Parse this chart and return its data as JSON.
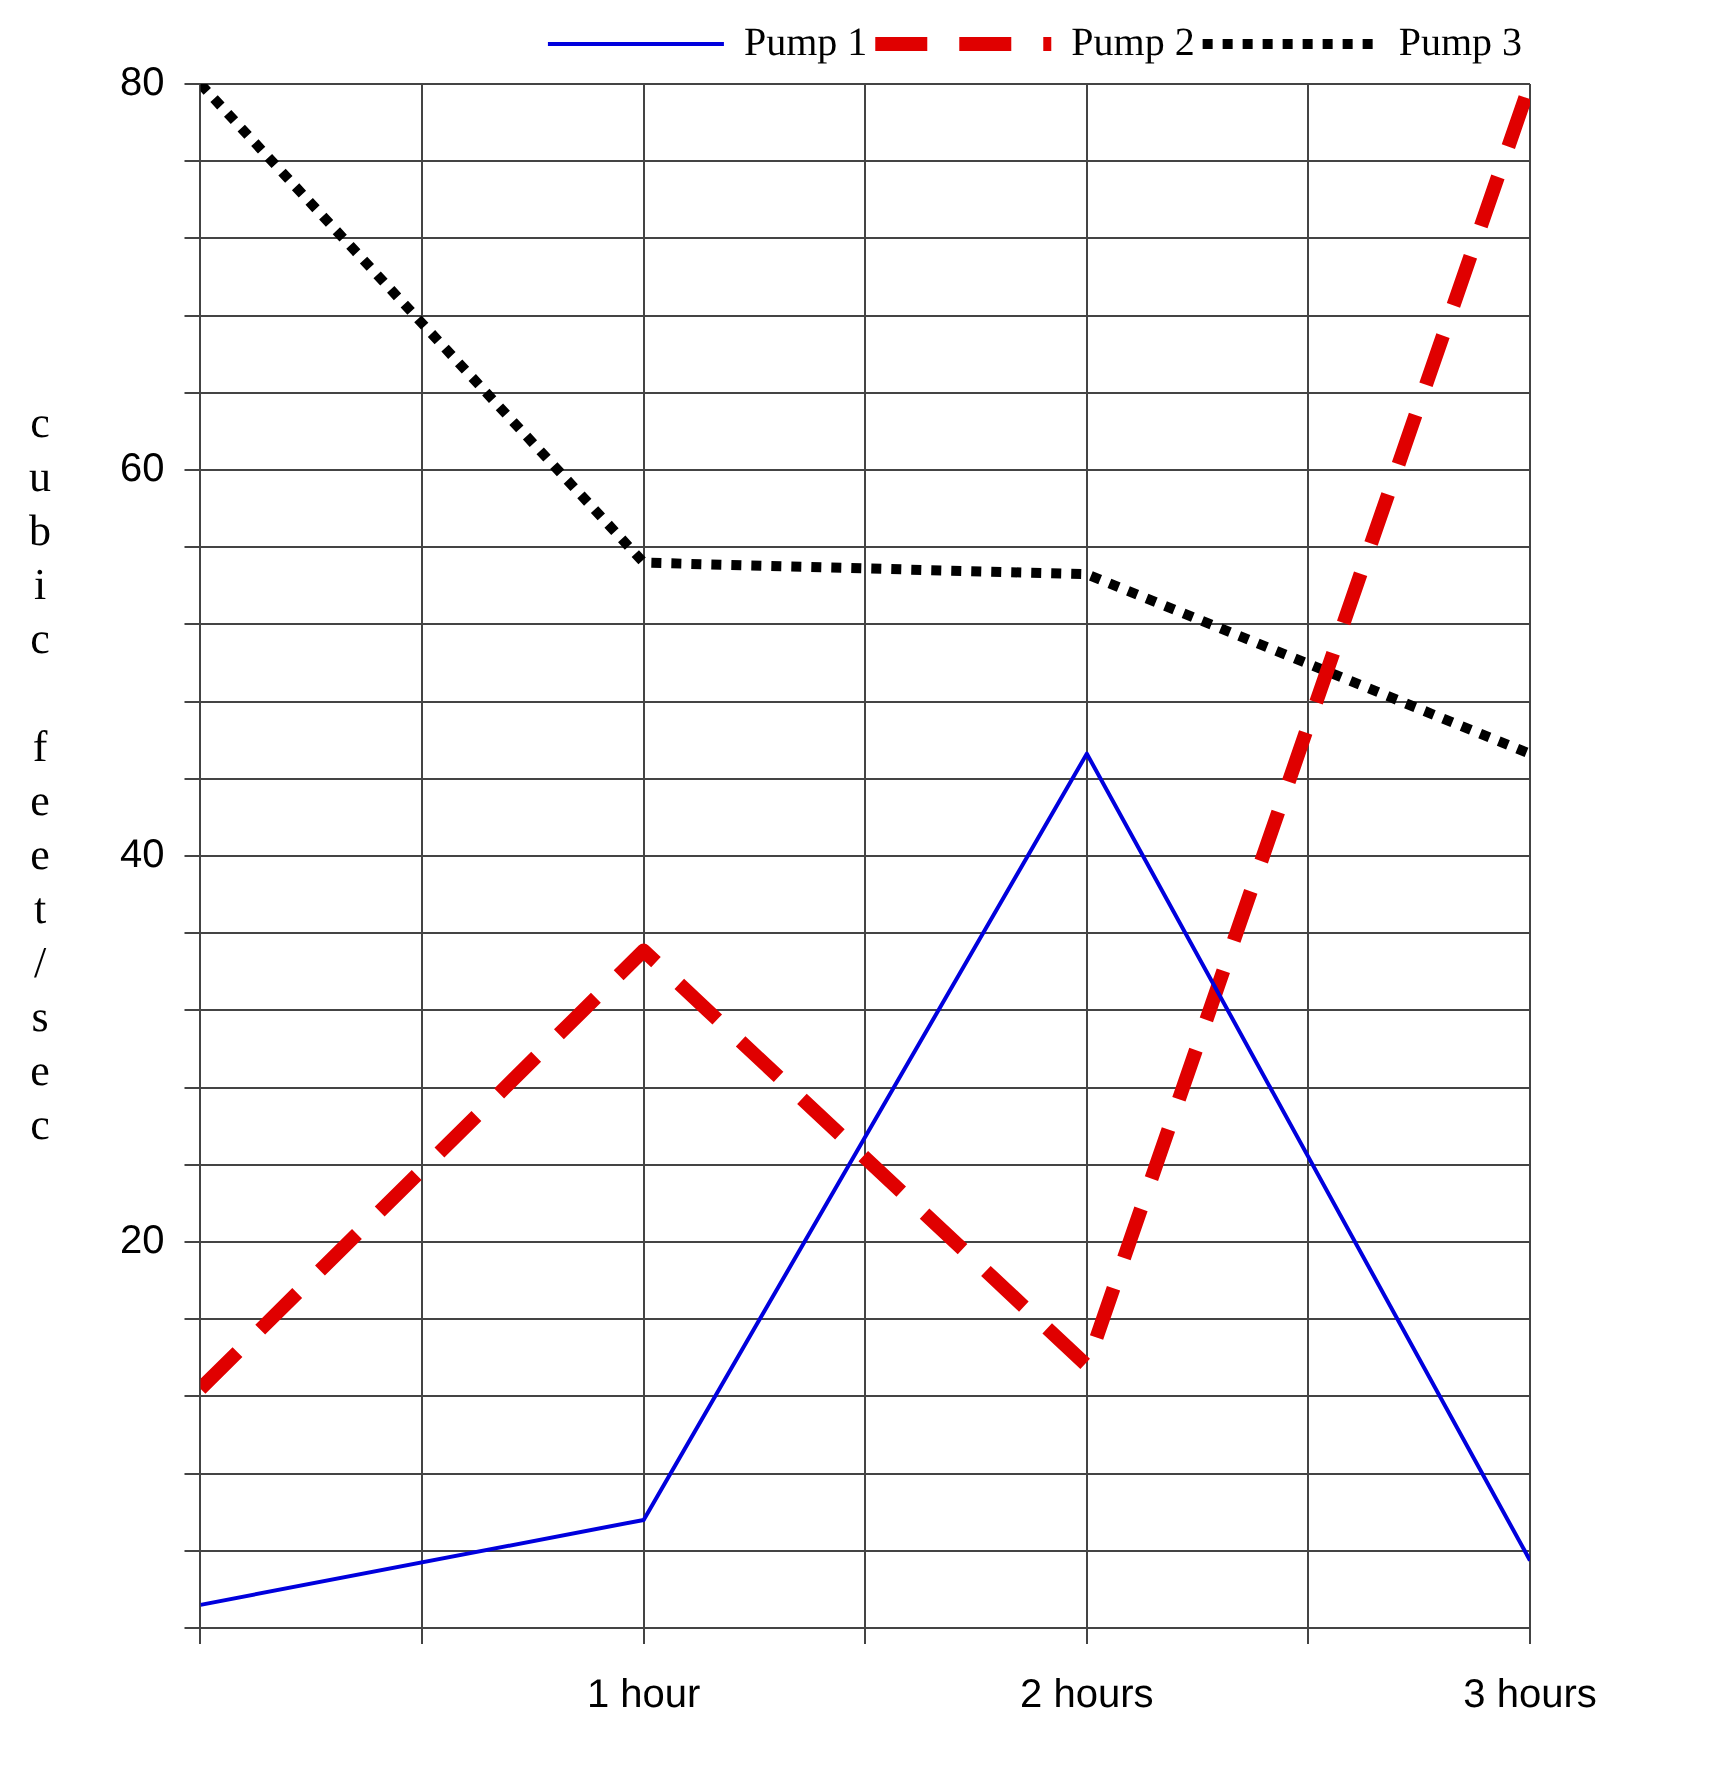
{
  "chart_data": {
    "type": "line",
    "ylabel": "cubic feet/sec",
    "x": [
      0,
      1,
      2,
      3
    ],
    "series": [
      {
        "name": "Pump 1",
        "color": "#0000dd",
        "line_style": "solid",
        "values": [
          1.2,
          5.6,
          45.3,
          3.5
        ]
      },
      {
        "name": "Pump 2",
        "color": "#e00000",
        "line_style": "dashed",
        "values": [
          12.4,
          35.1,
          13.6,
          80
        ]
      },
      {
        "name": "Pump 3",
        "color": "#000000",
        "line_style": "dotted",
        "values": [
          80,
          55.2,
          54.6,
          45.3
        ]
      }
    ],
    "xlim": [
      0,
      3
    ],
    "xticks": [
      {
        "value": 0,
        "label": null
      },
      {
        "value": 0.5,
        "label": null
      },
      {
        "value": 1,
        "label": "1 hour"
      },
      {
        "value": 1.5,
        "label": null
      },
      {
        "value": 2,
        "label": "2 hours"
      },
      {
        "value": 2.5,
        "label": null
      },
      {
        "value": 3,
        "label": "3 hours"
      }
    ],
    "ylim": [
      0,
      80
    ],
    "yticks": [
      {
        "value": 0,
        "label": null
      },
      {
        "value": 4,
        "label": null
      },
      {
        "value": 8,
        "label": null
      },
      {
        "value": 12,
        "label": null
      },
      {
        "value": 16,
        "label": null
      },
      20,
      {
        "value": 24,
        "label": null
      },
      {
        "value": 28,
        "label": null
      },
      {
        "value": 32,
        "label": null
      },
      {
        "value": 36,
        "label": null
      },
      40,
      {
        "value": 44,
        "label": null
      },
      {
        "value": 48,
        "label": null
      },
      {
        "value": 52,
        "label": null
      },
      {
        "value": 56,
        "label": null
      },
      60,
      {
        "value": 64,
        "label": null
      },
      {
        "value": 68,
        "label": null
      },
      {
        "value": 72,
        "label": null
      },
      {
        "value": 76,
        "label": null
      },
      80
    ],
    "grid": true,
    "legend": "top right",
    "marker": "none"
  }
}
